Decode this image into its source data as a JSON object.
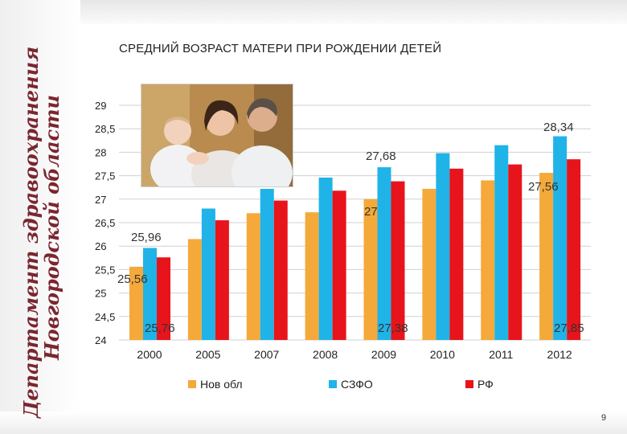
{
  "slide": {
    "title": "СРЕДНИЙ ВОЗРАСТ МАТЕРИ ПРИ РОЖДЕНИИ ДЕТЕЙ",
    "side_text_line1": "Департамент здравоохранения",
    "side_text_line2": "Новгородской области",
    "page_number": "9"
  },
  "colors": {
    "nov": "#f4a93a",
    "szfo": "#1fb3e8",
    "rf": "#e8141b",
    "side_text": "#7a2630",
    "grid": "#d0d0d0"
  },
  "chart_data": {
    "type": "bar",
    "title": "СРЕДНИЙ ВОЗРАСТ МАТЕРИ ПРИ РОЖДЕНИИ ДЕТЕЙ",
    "categories": [
      "2000",
      "2005",
      "2007",
      "2008",
      "2009",
      "2010",
      "2011",
      "2012"
    ],
    "series": [
      {
        "name": "Нов обл",
        "values": [
          25.56,
          26.15,
          26.7,
          26.72,
          27.0,
          27.22,
          27.4,
          27.56
        ]
      },
      {
        "name": "СЗФО",
        "values": [
          25.96,
          26.8,
          27.22,
          27.46,
          27.68,
          27.98,
          28.15,
          28.34
        ]
      },
      {
        "name": "РФ",
        "values": [
          25.76,
          26.55,
          26.97,
          27.18,
          27.38,
          27.65,
          27.74,
          27.85
        ]
      }
    ],
    "ylim": [
      24,
      29
    ],
    "yticks": [
      "29",
      "28,5",
      "28",
      "27,5",
      "27",
      "26,5",
      "26",
      "25,5",
      "25",
      "24,5",
      "24"
    ],
    "data_labels": [
      "25,96",
      "25,56",
      "25,76",
      "27,68",
      "27",
      "27,38",
      "28,34",
      "27,56",
      "27,85"
    ],
    "legend_position": "bottom",
    "grid": true
  }
}
